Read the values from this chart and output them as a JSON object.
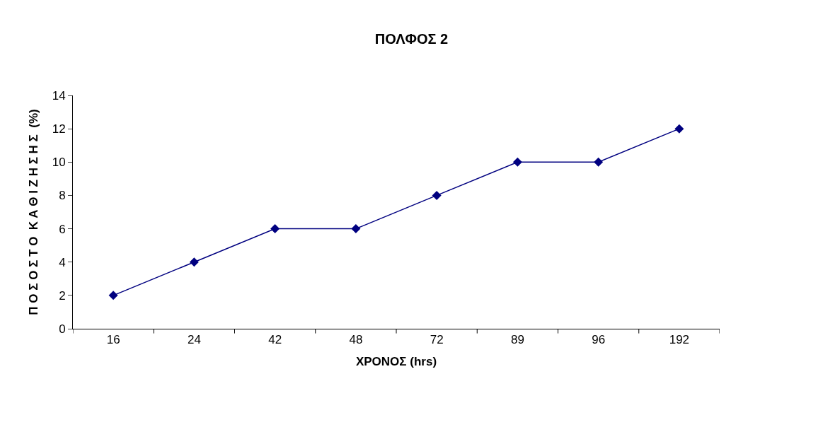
{
  "chart_data": {
    "type": "line",
    "title": "ΠΟΛΦΟΣ 2",
    "xlabel": "ΧΡΟΝΟΣ (hrs)",
    "ylabel": "Π Ο Σ Ο Σ Τ Ο  Κ Α Θ Ι Ζ Η Σ Η Σ  (%)",
    "categories": [
      "16",
      "24",
      "42",
      "48",
      "72",
      "89",
      "96",
      "192"
    ],
    "series": [
      {
        "color": "#000080",
        "values": [
          2,
          4,
          6,
          6,
          8,
          10,
          10,
          12
        ]
      }
    ],
    "ylim": [
      0,
      14
    ],
    "yticks": [
      0,
      2,
      4,
      6,
      8,
      10,
      12,
      14
    ],
    "marker": "diamond",
    "line_style": "solid"
  }
}
